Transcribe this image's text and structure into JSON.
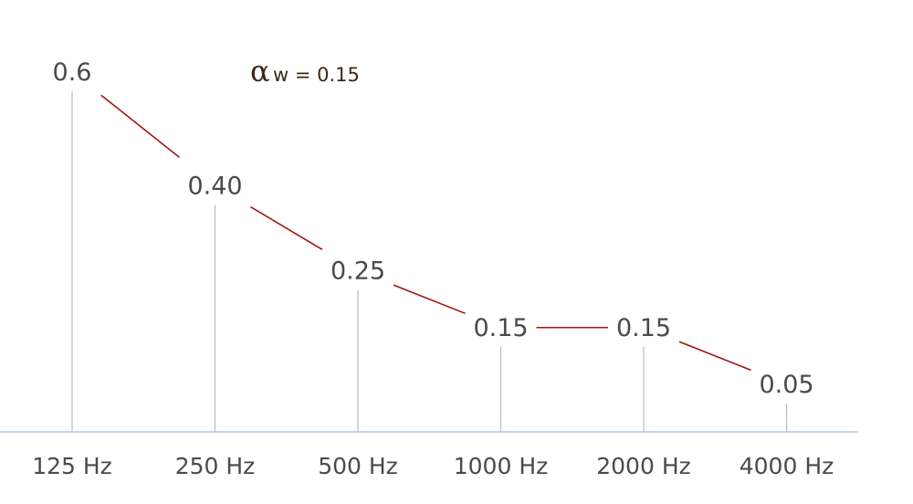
{
  "chart_data": {
    "type": "line",
    "categories": [
      "125 Hz",
      "250 Hz",
      "500 Hz",
      "1000 Hz",
      "2000 Hz",
      "4000 Hz"
    ],
    "values": [
      0.6,
      0.4,
      0.25,
      0.15,
      0.15,
      0.05
    ],
    "value_labels": [
      "0.6",
      "0.40",
      "0.25",
      "0.15",
      "0.15",
      "0.05"
    ],
    "annotation": {
      "symbol": "α",
      "text": "w = 0.15"
    },
    "ylim": [
      0,
      0.6
    ],
    "grid": false,
    "colors": {
      "line": "#a31515",
      "stem": "#b8bcc4",
      "baseline": "#aecbe6",
      "text": "#4a4a4a"
    }
  }
}
